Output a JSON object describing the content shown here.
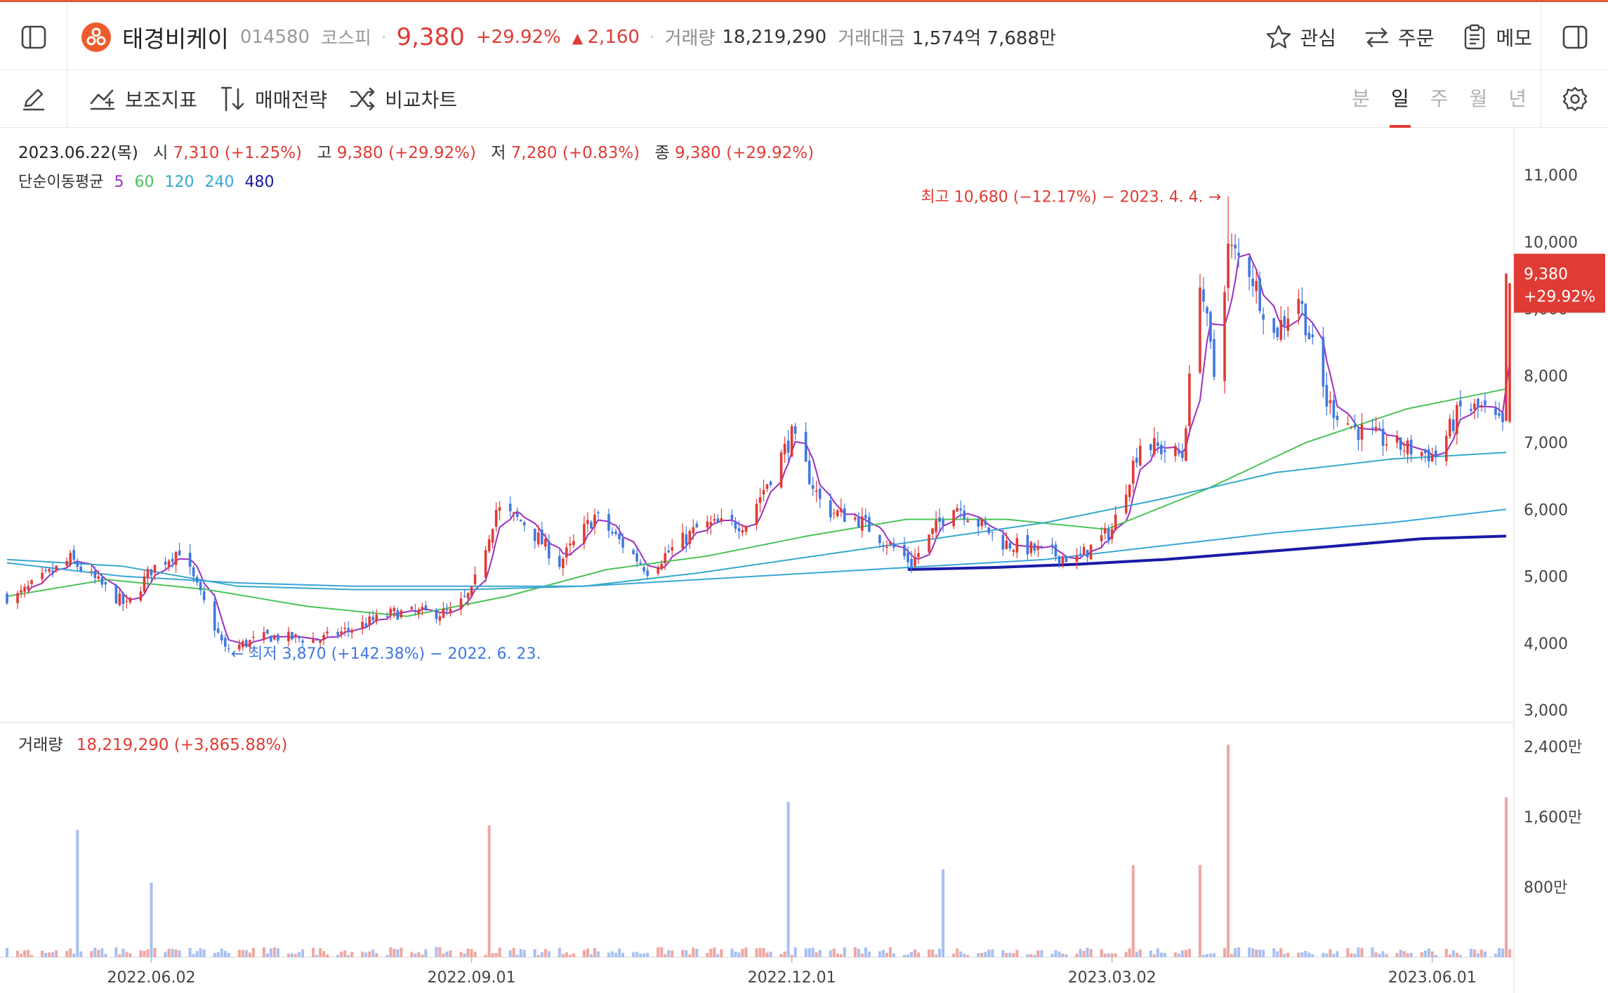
{
  "header": {
    "stock_name": "태경비케이",
    "stock_code": "014580",
    "market": "코스피",
    "price": "9,380",
    "change_pct": "+29.92%",
    "change_amount": "2,160",
    "volume_label": "거래량",
    "volume": "18,219,290",
    "value_label": "거래대금",
    "value": "1,574억 7,688만",
    "actions": {
      "watch": "관심",
      "order": "주문",
      "memo": "메모"
    }
  },
  "toolbar": {
    "indicators": "보조지표",
    "strategy": "매매전략",
    "compare": "비교차트",
    "periods": [
      "분",
      "일",
      "주",
      "월",
      "년"
    ],
    "active_period": "일"
  },
  "ohlc": {
    "date": "2023.06.22(목)",
    "open_label": "시",
    "open": "7,310 (+1.25%)",
    "high_label": "고",
    "high": "9,380 (+29.92%)",
    "low_label": "저",
    "low": "7,280 (+0.83%)",
    "close_label": "종",
    "close": "9,380 (+29.92%)"
  },
  "ma_legend": {
    "label": "단순이동평균",
    "periods": [
      "5",
      "60",
      "120",
      "240",
      "480"
    ]
  },
  "colors": {
    "up": "#e03b35",
    "down": "#3f78e0",
    "vol_up": "#f0a6a1",
    "vol_down": "#a8c0f2",
    "ma5": "#9b2fc3",
    "ma60": "#4cc35a",
    "ma120": "#36a9c9",
    "ma240": "#3aa6d8",
    "ma480": "#1a1aa8",
    "accent": "#e2583b"
  },
  "chart_data": {
    "type": "candlestick",
    "x_ticks": [
      "2022.06.02",
      "2022.09.01",
      "2022.12.01",
      "2023.03.02",
      "2023.06.01"
    ],
    "y_ticks": [
      "11,000",
      "10,000",
      "9,000",
      "8,000",
      "7,000",
      "6,000",
      "5,000",
      "4,000",
      "3,000"
    ],
    "ylim": [
      3000,
      11000
    ],
    "current_price_label": "9,380",
    "current_pct_label": "+29.92%",
    "current_price": 9380,
    "annotations": {
      "high": {
        "text": "최고 10,680 (−12.17%) − 2023. 4. 4. →",
        "value": 10680,
        "date": "2023-04-04"
      },
      "low": {
        "text": "← 최저 3,870 (+142.38%) − 2022. 6. 23.",
        "value": 3870,
        "date": "2022-06-23"
      }
    },
    "key_closes": [
      {
        "date": "2022-04-25",
        "close": 4700
      },
      {
        "date": "2022-05-10",
        "close": 5250
      },
      {
        "date": "2022-05-26",
        "close": 4550
      },
      {
        "date": "2022-06-02",
        "close": 5100
      },
      {
        "date": "2022-06-10",
        "close": 5400
      },
      {
        "date": "2022-06-23",
        "close": 3900
      },
      {
        "date": "2022-07-05",
        "close": 4100
      },
      {
        "date": "2022-07-20",
        "close": 4050
      },
      {
        "date": "2022-08-10",
        "close": 4450
      },
      {
        "date": "2022-08-26",
        "close": 4450
      },
      {
        "date": "2022-09-01",
        "close": 4750
      },
      {
        "date": "2022-09-08",
        "close": 6000
      },
      {
        "date": "2022-09-16",
        "close": 5800
      },
      {
        "date": "2022-09-26",
        "close": 5200
      },
      {
        "date": "2022-10-06",
        "close": 5900
      },
      {
        "date": "2022-10-21",
        "close": 5100
      },
      {
        "date": "2022-11-05",
        "close": 5750
      },
      {
        "date": "2022-11-18",
        "close": 5800
      },
      {
        "date": "2022-12-01",
        "close": 7100
      },
      {
        "date": "2022-12-10",
        "close": 6000
      },
      {
        "date": "2022-12-20",
        "close": 5850
      },
      {
        "date": "2023-01-04",
        "close": 5200
      },
      {
        "date": "2023-01-16",
        "close": 6100
      },
      {
        "date": "2023-01-30",
        "close": 5500
      },
      {
        "date": "2023-02-20",
        "close": 5250
      },
      {
        "date": "2023-03-02",
        "close": 5700
      },
      {
        "date": "2023-03-10",
        "close": 7000
      },
      {
        "date": "2023-03-22",
        "close": 6800
      },
      {
        "date": "2023-03-27",
        "close": 9500
      },
      {
        "date": "2023-03-31",
        "close": 8000
      },
      {
        "date": "2023-04-04",
        "close": 9900
      },
      {
        "date": "2023-04-10",
        "close": 9600
      },
      {
        "date": "2023-04-17",
        "close": 8600
      },
      {
        "date": "2023-04-24",
        "close": 9200
      },
      {
        "date": "2023-05-02",
        "close": 7600
      },
      {
        "date": "2023-05-10",
        "close": 7200
      },
      {
        "date": "2023-05-22",
        "close": 6950
      },
      {
        "date": "2023-06-02",
        "close": 6800
      },
      {
        "date": "2023-06-09",
        "close": 7500
      },
      {
        "date": "2023-06-15",
        "close": 7500
      },
      {
        "date": "2023-06-21",
        "close": 7220
      },
      {
        "date": "2023-06-22",
        "close": 9380
      }
    ],
    "moving_averages": [
      {
        "name": "60",
        "values": [
          4700,
          4950,
          4800,
          4550,
          4400,
          4700,
          5100,
          5300,
          5600,
          5850,
          5850,
          5700,
          6300,
          7000,
          7500,
          7800
        ]
      },
      {
        "name": "120",
        "values": [
          5250,
          5150,
          4850,
          4800,
          4800,
          4850,
          5050,
          5300,
          5550,
          5800,
          6150,
          6550,
          6750,
          6850
        ]
      },
      {
        "name": "240",
        "values": [
          5200,
          5000,
          4900,
          4850,
          4850,
          4850,
          4950,
          5050,
          5150,
          5250,
          5450,
          5650,
          5800,
          6000
        ]
      },
      {
        "name": "480",
        "values": [
          5100,
          5130,
          5180,
          5250,
          5350,
          5450,
          5560,
          5600
        ]
      }
    ]
  },
  "volume_chart": {
    "label": "거래량",
    "value": "18,219,290 (+3,865.88%)",
    "y_ticks": [
      "2,400만",
      "1,600만",
      "800만"
    ],
    "ylim_manwon": [
      0,
      2600
    ],
    "spikes": [
      {
        "date": "2022-05-12",
        "volume": 14500000
      },
      {
        "date": "2022-06-02",
        "volume": 8500000
      },
      {
        "date": "2022-09-06",
        "volume": 15000000
      },
      {
        "date": "2022-11-30",
        "volume": 17700000
      },
      {
        "date": "2023-01-13",
        "volume": 10000000
      },
      {
        "date": "2023-03-08",
        "volume": 10500000
      },
      {
        "date": "2023-03-27",
        "volume": 10500000
      },
      {
        "date": "2023-04-04",
        "volume": 24200000
      },
      {
        "date": "2023-06-22",
        "volume": 18219290
      }
    ]
  }
}
